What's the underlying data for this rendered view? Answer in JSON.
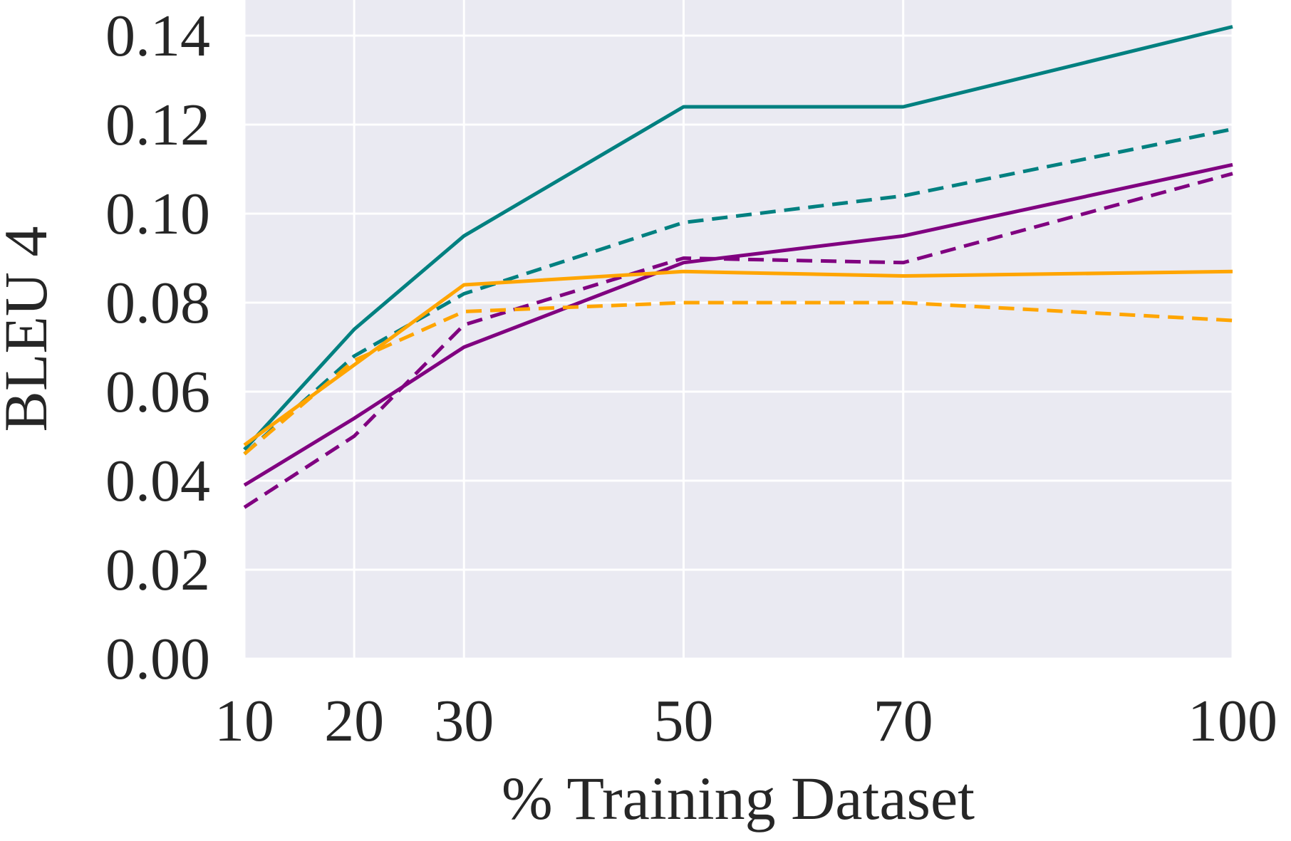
{
  "chart_data": {
    "type": "line",
    "title": "",
    "xlabel": "% Training Dataset",
    "ylabel": "BLEU 4",
    "x": [
      10,
      20,
      30,
      50,
      70,
      100
    ],
    "x_ticks": [
      "10",
      "20",
      "30",
      "50",
      "70",
      "100"
    ],
    "y_ticks": [
      "0.00",
      "0.02",
      "0.04",
      "0.06",
      "0.08",
      "0.10",
      "0.12",
      "0.14"
    ],
    "xlim": [
      10,
      100
    ],
    "ylim": [
      0.0,
      0.148
    ],
    "grid": true,
    "background": "#eaeaf2",
    "series": [
      {
        "name": "teal-solid",
        "color": "#008080",
        "dash": false,
        "values": [
          0.047,
          0.074,
          0.095,
          0.124,
          0.124,
          0.142
        ]
      },
      {
        "name": "teal-dashed",
        "color": "#008080",
        "dash": true,
        "values": [
          0.046,
          0.068,
          0.082,
          0.098,
          0.104,
          0.119
        ]
      },
      {
        "name": "purple-solid",
        "color": "#800080",
        "dash": false,
        "values": [
          0.039,
          0.054,
          0.07,
          0.089,
          0.095,
          0.111
        ]
      },
      {
        "name": "purple-dashed",
        "color": "#800080",
        "dash": true,
        "values": [
          0.034,
          0.05,
          0.075,
          0.09,
          0.089,
          0.109
        ]
      },
      {
        "name": "orange-solid",
        "color": "#ffa500",
        "dash": false,
        "values": [
          0.048,
          0.066,
          0.084,
          0.087,
          0.086,
          0.087
        ]
      },
      {
        "name": "orange-dashed",
        "color": "#ffa500",
        "dash": true,
        "values": [
          0.046,
          0.067,
          0.078,
          0.08,
          0.08,
          0.076
        ]
      }
    ]
  }
}
